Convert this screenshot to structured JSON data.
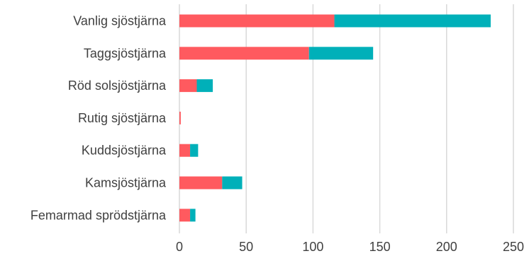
{
  "chart_data": {
    "type": "bar",
    "orientation": "horizontal",
    "stacked": true,
    "categories": [
      "Vanlig sjöstjärna",
      "Taggsjöstjärna",
      "Röd solsjöstjärna",
      "Rutig sjöstjärna",
      "Kuddsjöstjärna",
      "Kamsjöstjärna",
      "Femarmad sprödstjärna"
    ],
    "series": [
      {
        "color": "#ff5a5f",
        "values": [
          116,
          97,
          13,
          1,
          8,
          32,
          8
        ]
      },
      {
        "color": "#00b0b9",
        "values": [
          117,
          48,
          12,
          0,
          6,
          15,
          4
        ]
      }
    ],
    "xlim": [
      0,
      250
    ],
    "xticks": [
      0,
      50,
      100,
      150,
      200,
      250
    ],
    "grid": true,
    "legend": "none",
    "title": "",
    "xlabel": "",
    "ylabel": ""
  }
}
